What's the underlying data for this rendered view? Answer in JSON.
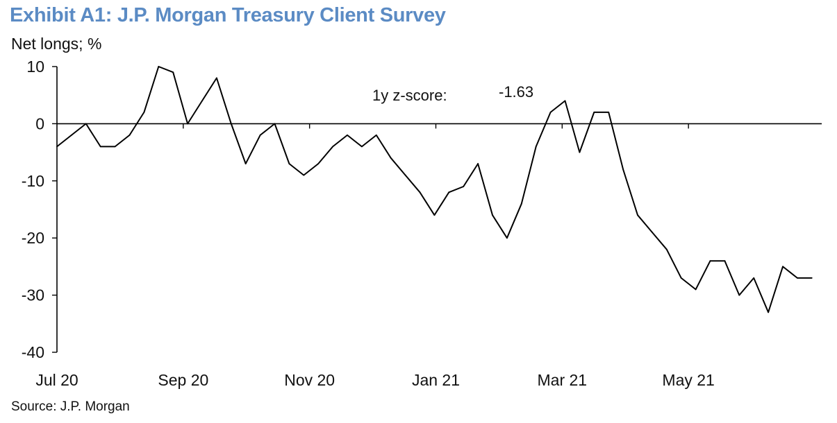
{
  "title": "Exhibit A1: J.P. Morgan Treasury Client Survey",
  "subtitle": "Net longs; %",
  "source": "Source: J.P. Morgan",
  "annotation": {
    "label": "1y z-score:",
    "value": "-1.63"
  },
  "colors": {
    "title": "#5b8bc4",
    "line": "#000000"
  },
  "chart_data": {
    "type": "line",
    "title": "Exhibit A1: J.P. Morgan Treasury Client Survey",
    "ylabel": "Net longs; %",
    "xlabel": "",
    "ylim": [
      -40,
      10
    ],
    "yticks": [
      10,
      0,
      -10,
      -20,
      -30,
      -40
    ],
    "xtick_labels": [
      "Jul 20",
      "Sep 20",
      "Nov 20",
      "Jan 21",
      "Mar 21",
      "May 21"
    ],
    "grid": false,
    "legend": "none",
    "x": [
      "2020-06-30",
      "2020-07-07",
      "2020-07-14",
      "2020-07-21",
      "2020-07-28",
      "2020-08-04",
      "2020-08-11",
      "2020-08-18",
      "2020-08-25",
      "2020-09-01",
      "2020-09-08",
      "2020-09-15",
      "2020-09-22",
      "2020-09-29",
      "2020-10-06",
      "2020-10-13",
      "2020-10-20",
      "2020-10-27",
      "2020-11-03",
      "2020-11-10",
      "2020-11-17",
      "2020-11-24",
      "2020-12-01",
      "2020-12-08",
      "2020-12-15",
      "2020-12-22",
      "2020-12-29",
      "2021-01-05",
      "2021-01-12",
      "2021-01-19",
      "2021-01-26",
      "2021-02-02",
      "2021-02-09",
      "2021-02-16",
      "2021-02-23",
      "2021-03-02",
      "2021-03-09",
      "2021-03-16",
      "2021-03-23",
      "2021-03-30",
      "2021-04-06",
      "2021-04-13",
      "2021-04-20",
      "2021-04-27",
      "2021-05-04",
      "2021-05-11",
      "2021-05-18",
      "2021-05-25",
      "2021-06-01",
      "2021-06-08",
      "2021-06-15",
      "2021-06-22",
      "2021-06-29"
    ],
    "series": [
      {
        "values": [
          -4,
          -2,
          0,
          -4,
          -4,
          -2,
          2,
          10,
          9,
          0,
          4,
          8,
          0,
          -7,
          -2,
          0,
          -7,
          -9,
          -7,
          -4,
          -2,
          -4,
          -2,
          -6,
          -9,
          -12,
          -16,
          -12,
          -11,
          -7,
          -16,
          -20,
          -14,
          -4,
          2,
          4,
          -5,
          2,
          2,
          -8,
          -16,
          -19,
          -22,
          -27,
          -29,
          -24,
          -24,
          -30,
          -27,
          -33,
          -25,
          -27,
          -27
        ]
      }
    ]
  }
}
